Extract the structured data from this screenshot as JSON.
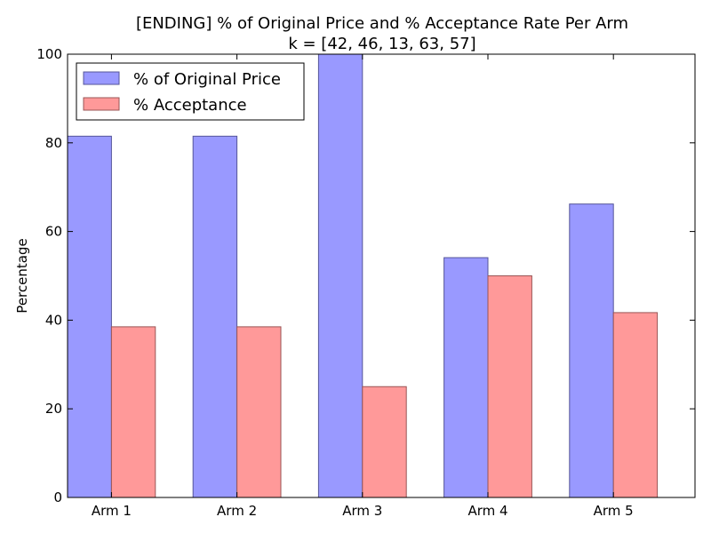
{
  "chart_data": {
    "type": "bar",
    "title": "[ENDING] % of Original Price and % Acceptance Rate Per Arm",
    "subtitle": "k = [42, 46, 13, 63, 57]",
    "xlabel": "",
    "ylabel": "Percentage",
    "categories": [
      "Arm 1",
      "Arm 2",
      "Arm 3",
      "Arm 4",
      "Arm 5"
    ],
    "ylim": [
      0,
      100
    ],
    "yticks": [
      0,
      20,
      40,
      60,
      80,
      100
    ],
    "ytick_labels": [
      "0",
      "20",
      "40",
      "60",
      "80",
      "100"
    ],
    "grid": false,
    "legend_position": "top-left",
    "series": [
      {
        "name": "% of Original Price",
        "color": "#9999ff",
        "edge_color": "#555599",
        "values": [
          81.5,
          81.5,
          100,
          54.1,
          66.2
        ]
      },
      {
        "name": "% Acceptance",
        "color": "#ff9999",
        "edge_color": "#995555",
        "values": [
          38.5,
          38.5,
          25.0,
          50.0,
          41.7
        ]
      }
    ]
  }
}
